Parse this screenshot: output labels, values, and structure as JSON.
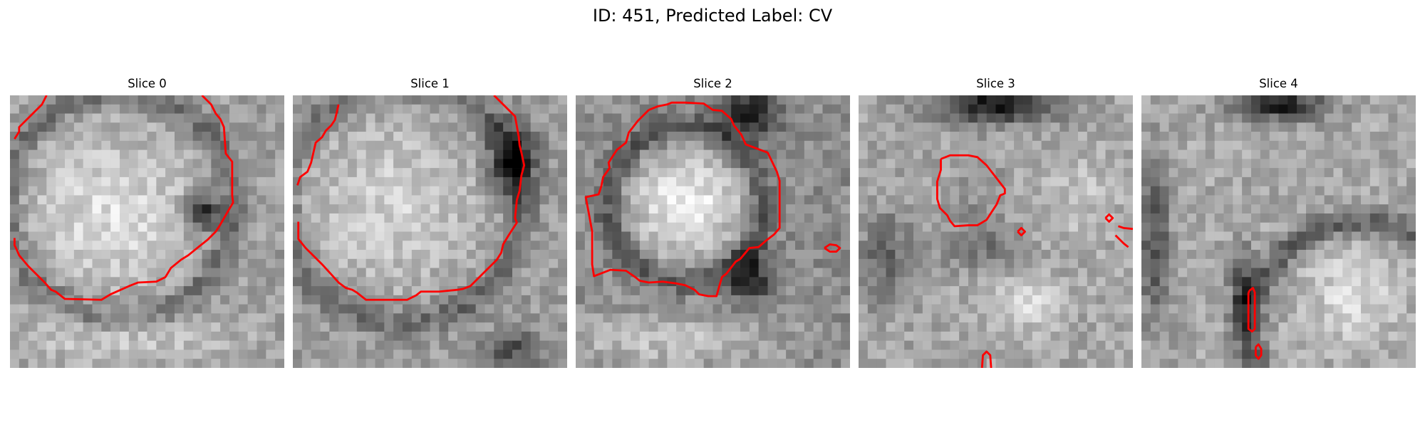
{
  "title": "ID: 451, Predicted Label: CV",
  "colors": {
    "contour": "#ff0000",
    "background": "#ffffff"
  },
  "panels": [
    {
      "label": "Slice 0"
    },
    {
      "label": "Slice 1"
    },
    {
      "label": "Slice 2"
    },
    {
      "label": "Slice 3"
    },
    {
      "label": "Slice 4"
    }
  ]
}
